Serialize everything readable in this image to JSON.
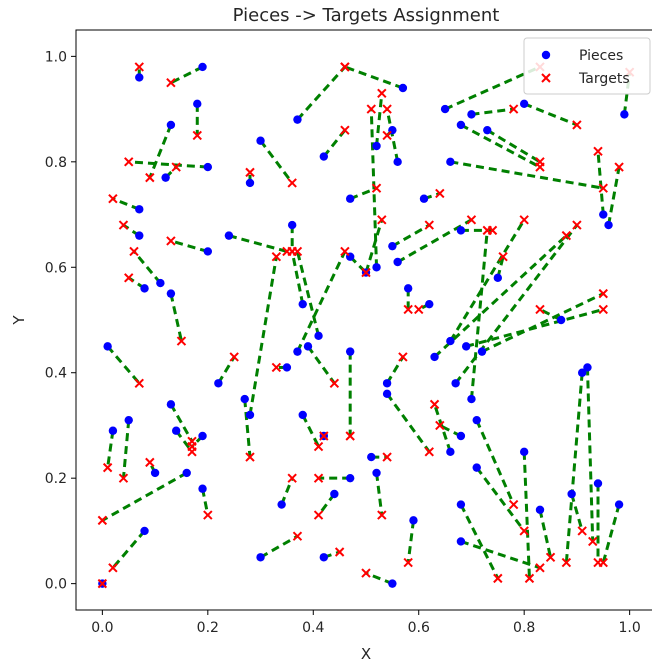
{
  "chart_data": {
    "type": "scatter",
    "title": "Pieces -> Targets Assignment",
    "xlabel": "X",
    "ylabel": "Y",
    "xlim": [
      -0.05,
      1.05
    ],
    "ylim": [
      -0.05,
      1.05
    ],
    "xticks": [
      0.0,
      0.2,
      0.4,
      0.6,
      0.8,
      1.0
    ],
    "yticks": [
      0.0,
      0.2,
      0.4,
      0.6,
      0.8,
      1.0
    ],
    "xtick_labels": [
      "0.0",
      "0.2",
      "0.4",
      "0.6",
      "0.8",
      "1.0"
    ],
    "ytick_labels": [
      "0.0",
      "0.2",
      "0.4",
      "0.6",
      "0.8",
      "1.0"
    ],
    "grid": false,
    "legend": {
      "placement": "top-right",
      "entries": [
        "Pieces",
        "Targets"
      ]
    },
    "colors": {
      "pieces": "#0000ff",
      "targets": "#ff0000",
      "assignment_line": "#008000"
    },
    "series": [
      {
        "name": "Pieces",
        "marker": "circle",
        "points": [
          [
            0.07,
            0.96
          ],
          [
            0.19,
            0.98
          ],
          [
            0.18,
            0.91
          ],
          [
            0.13,
            0.87
          ],
          [
            0.12,
            0.77
          ],
          [
            0.2,
            0.79
          ],
          [
            0.07,
            0.71
          ],
          [
            0.07,
            0.66
          ],
          [
            0.11,
            0.57
          ],
          [
            0.08,
            0.56
          ],
          [
            0.13,
            0.55
          ],
          [
            0.2,
            0.63
          ],
          [
            0.24,
            0.66
          ],
          [
            0.3,
            0.84
          ],
          [
            0.28,
            0.76
          ],
          [
            0.37,
            0.88
          ],
          [
            0.42,
            0.81
          ],
          [
            0.36,
            0.68
          ],
          [
            0.38,
            0.53
          ],
          [
            0.41,
            0.47
          ],
          [
            0.47,
            0.73
          ],
          [
            0.47,
            0.62
          ],
          [
            0.5,
            0.59
          ],
          [
            0.52,
            0.83
          ],
          [
            0.52,
            0.6
          ],
          [
            0.55,
            0.86
          ],
          [
            0.56,
            0.8
          ],
          [
            0.57,
            0.94
          ],
          [
            0.55,
            0.64
          ],
          [
            0.56,
            0.61
          ],
          [
            0.58,
            0.56
          ],
          [
            0.61,
            0.73
          ],
          [
            0.62,
            0.53
          ],
          [
            0.65,
            0.9
          ],
          [
            0.66,
            0.8
          ],
          [
            0.68,
            0.87
          ],
          [
            0.7,
            0.89
          ],
          [
            0.73,
            0.86
          ],
          [
            0.68,
            0.67
          ],
          [
            0.75,
            0.58
          ],
          [
            0.8,
            0.91
          ],
          [
            0.72,
            0.44
          ],
          [
            0.69,
            0.45
          ],
          [
            0.66,
            0.46
          ],
          [
            0.63,
            0.43
          ],
          [
            0.67,
            0.38
          ],
          [
            0.66,
            0.25
          ],
          [
            0.68,
            0.28
          ],
          [
            0.7,
            0.35
          ],
          [
            0.71,
            0.31
          ],
          [
            0.71,
            0.22
          ],
          [
            0.68,
            0.15
          ],
          [
            0.68,
            0.08
          ],
          [
            0.8,
            0.25
          ],
          [
            0.83,
            0.14
          ],
          [
            0.87,
            0.5
          ],
          [
            0.89,
            0.17
          ],
          [
            0.91,
            0.4
          ],
          [
            0.92,
            0.41
          ],
          [
            0.94,
            0.19
          ],
          [
            0.95,
            0.7
          ],
          [
            0.96,
            0.68
          ],
          [
            0.98,
            0.15
          ],
          [
            0.99,
            0.89
          ],
          [
            0.01,
            0.45
          ],
          [
            0.02,
            0.29
          ],
          [
            0.05,
            0.31
          ],
          [
            0.1,
            0.21
          ],
          [
            0.13,
            0.34
          ],
          [
            0.14,
            0.29
          ],
          [
            0.16,
            0.21
          ],
          [
            0.19,
            0.28
          ],
          [
            0.19,
            0.18
          ],
          [
            0.22,
            0.38
          ],
          [
            0.27,
            0.35
          ],
          [
            0.28,
            0.32
          ],
          [
            0.08,
            0.1
          ],
          [
            0.3,
            0.05
          ],
          [
            0.34,
            0.15
          ],
          [
            0.35,
            0.41
          ],
          [
            0.37,
            0.44
          ],
          [
            0.39,
            0.45
          ],
          [
            0.38,
            0.32
          ],
          [
            0.42,
            0.28
          ],
          [
            0.42,
            0.05
          ],
          [
            0.44,
            0.17
          ],
          [
            0.47,
            0.2
          ],
          [
            0.47,
            0.44
          ],
          [
            0.51,
            0.24
          ],
          [
            0.52,
            0.21
          ],
          [
            0.54,
            0.38
          ],
          [
            0.54,
            0.36
          ],
          [
            0.55,
            0.0
          ],
          [
            0.59,
            0.12
          ],
          [
            0.0,
            0.0
          ]
        ]
      },
      {
        "name": "Targets",
        "marker": "x",
        "points": [
          [
            0.07,
            0.98
          ],
          [
            0.13,
            0.95
          ],
          [
            0.18,
            0.85
          ],
          [
            0.09,
            0.77
          ],
          [
            0.14,
            0.79
          ],
          [
            0.05,
            0.8
          ],
          [
            0.02,
            0.73
          ],
          [
            0.04,
            0.68
          ],
          [
            0.06,
            0.63
          ],
          [
            0.05,
            0.58
          ],
          [
            0.15,
            0.46
          ],
          [
            0.13,
            0.65
          ],
          [
            0.35,
            0.63
          ],
          [
            0.36,
            0.76
          ],
          [
            0.28,
            0.78
          ],
          [
            0.46,
            0.98
          ],
          [
            0.46,
            0.86
          ],
          [
            0.36,
            0.63
          ],
          [
            0.36,
            0.63
          ],
          [
            0.37,
            0.63
          ],
          [
            0.52,
            0.75
          ],
          [
            0.5,
            0.59
          ],
          [
            0.53,
            0.69
          ],
          [
            0.53,
            0.93
          ],
          [
            0.51,
            0.9
          ],
          [
            0.54,
            0.85
          ],
          [
            0.54,
            0.9
          ],
          [
            0.46,
            0.98
          ],
          [
            0.62,
            0.68
          ],
          [
            0.7,
            0.69
          ],
          [
            0.58,
            0.52
          ],
          [
            0.64,
            0.74
          ],
          [
            0.6,
            0.52
          ],
          [
            0.83,
            0.98
          ],
          [
            0.95,
            0.75
          ],
          [
            0.83,
            0.79
          ],
          [
            0.78,
            0.9
          ],
          [
            0.83,
            0.8
          ],
          [
            0.74,
            0.67
          ],
          [
            0.76,
            0.62
          ],
          [
            0.9,
            0.87
          ],
          [
            0.95,
            0.55
          ],
          [
            0.95,
            0.52
          ],
          [
            0.8,
            0.69
          ],
          [
            0.88,
            0.66
          ],
          [
            0.9,
            0.68
          ],
          [
            0.63,
            0.34
          ],
          [
            0.64,
            0.3
          ],
          [
            0.73,
            0.67
          ],
          [
            0.78,
            0.15
          ],
          [
            0.8,
            0.1
          ],
          [
            0.75,
            0.01
          ],
          [
            0.83,
            0.03
          ],
          [
            0.81,
            0.01
          ],
          [
            0.85,
            0.05
          ],
          [
            0.83,
            0.52
          ],
          [
            0.91,
            0.1
          ],
          [
            0.88,
            0.04
          ],
          [
            0.93,
            0.08
          ],
          [
            0.94,
            0.04
          ],
          [
            0.94,
            0.82
          ],
          [
            0.98,
            0.79
          ],
          [
            0.95,
            0.04
          ],
          [
            1.0,
            0.97
          ],
          [
            0.07,
            0.38
          ],
          [
            0.01,
            0.22
          ],
          [
            0.04,
            0.2
          ],
          [
            0.09,
            0.23
          ],
          [
            0.17,
            0.27
          ],
          [
            0.17,
            0.25
          ],
          [
            0.0,
            0.12
          ],
          [
            0.17,
            0.26
          ],
          [
            0.2,
            0.13
          ],
          [
            0.25,
            0.43
          ],
          [
            0.28,
            0.24
          ],
          [
            0.33,
            0.62
          ],
          [
            0.02,
            0.03
          ],
          [
            0.37,
            0.09
          ],
          [
            0.36,
            0.2
          ],
          [
            0.33,
            0.41
          ],
          [
            0.46,
            0.63
          ],
          [
            0.44,
            0.38
          ],
          [
            0.41,
            0.26
          ],
          [
            0.42,
            0.28
          ],
          [
            0.45,
            0.06
          ],
          [
            0.41,
            0.13
          ],
          [
            0.41,
            0.2
          ],
          [
            0.47,
            0.28
          ],
          [
            0.54,
            0.24
          ],
          [
            0.53,
            0.13
          ],
          [
            0.57,
            0.43
          ],
          [
            0.62,
            0.25
          ],
          [
            0.5,
            0.02
          ],
          [
            0.58,
            0.04
          ],
          [
            0.0,
            0.0
          ]
        ]
      }
    ],
    "assignments": [
      [
        0,
        0
      ],
      [
        1,
        1
      ],
      [
        2,
        2
      ],
      [
        3,
        3
      ],
      [
        4,
        4
      ],
      [
        5,
        5
      ],
      [
        6,
        6
      ],
      [
        7,
        7
      ],
      [
        8,
        8
      ],
      [
        9,
        9
      ],
      [
        10,
        10
      ],
      [
        11,
        11
      ],
      [
        12,
        12
      ],
      [
        13,
        13
      ],
      [
        14,
        14
      ],
      [
        15,
        15
      ],
      [
        16,
        16
      ],
      [
        17,
        17
      ],
      [
        18,
        18
      ],
      [
        19,
        19
      ],
      [
        20,
        20
      ],
      [
        21,
        21
      ],
      [
        22,
        22
      ],
      [
        23,
        23
      ],
      [
        24,
        24
      ],
      [
        25,
        25
      ],
      [
        26,
        26
      ],
      [
        27,
        27
      ],
      [
        28,
        28
      ],
      [
        29,
        29
      ],
      [
        30,
        30
      ],
      [
        31,
        31
      ],
      [
        32,
        32
      ],
      [
        33,
        33
      ],
      [
        34,
        34
      ],
      [
        35,
        35
      ],
      [
        36,
        36
      ],
      [
        37,
        37
      ],
      [
        38,
        38
      ],
      [
        39,
        39
      ],
      [
        40,
        40
      ],
      [
        41,
        41
      ],
      [
        42,
        42
      ],
      [
        43,
        43
      ],
      [
        44,
        44
      ],
      [
        45,
        45
      ],
      [
        46,
        46
      ],
      [
        47,
        47
      ],
      [
        48,
        48
      ],
      [
        49,
        49
      ],
      [
        50,
        50
      ],
      [
        51,
        51
      ],
      [
        52,
        52
      ],
      [
        53,
        53
      ],
      [
        54,
        54
      ],
      [
        55,
        55
      ],
      [
        56,
        56
      ],
      [
        57,
        57
      ],
      [
        58,
        58
      ],
      [
        59,
        59
      ],
      [
        60,
        60
      ],
      [
        61,
        61
      ],
      [
        62,
        62
      ],
      [
        63,
        63
      ],
      [
        64,
        64
      ],
      [
        65,
        65
      ],
      [
        66,
        66
      ],
      [
        67,
        67
      ],
      [
        68,
        68
      ],
      [
        69,
        69
      ],
      [
        70,
        70
      ],
      [
        71,
        71
      ],
      [
        72,
        72
      ],
      [
        73,
        73
      ],
      [
        74,
        74
      ],
      [
        75,
        75
      ],
      [
        76,
        76
      ],
      [
        77,
        77
      ],
      [
        78,
        78
      ],
      [
        79,
        79
      ],
      [
        80,
        80
      ],
      [
        81,
        81
      ],
      [
        82,
        82
      ],
      [
        83,
        83
      ],
      [
        84,
        84
      ],
      [
        85,
        85
      ],
      [
        86,
        86
      ],
      [
        87,
        87
      ],
      [
        88,
        88
      ],
      [
        89,
        89
      ],
      [
        90,
        90
      ],
      [
        91,
        91
      ],
      [
        92,
        92
      ],
      [
        93,
        93
      ],
      [
        94,
        94
      ]
    ]
  }
}
